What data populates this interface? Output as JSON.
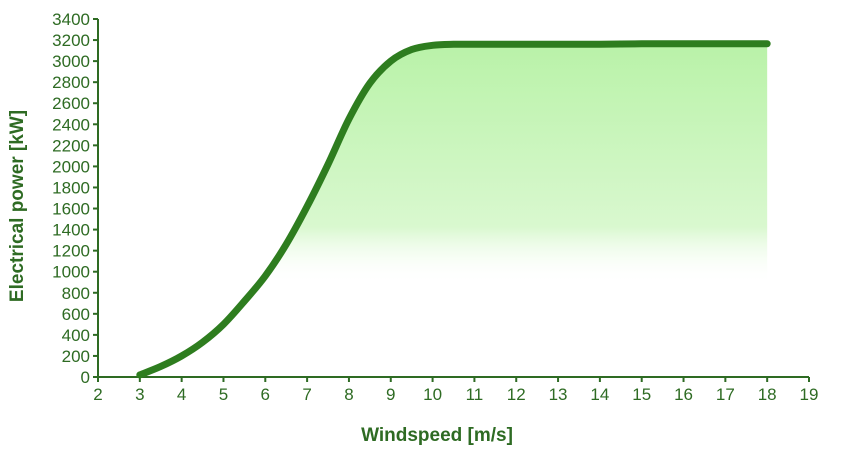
{
  "chart_data": {
    "type": "area",
    "title": "",
    "xlabel": "Windspeed [m/s]",
    "ylabel": "Electrical power [kW]",
    "xlim": [
      2,
      19
    ],
    "ylim": [
      0,
      3400
    ],
    "x_ticks": [
      2,
      3,
      4,
      5,
      6,
      7,
      8,
      9,
      10,
      11,
      12,
      13,
      14,
      15,
      16,
      17,
      18,
      19
    ],
    "y_ticks": [
      0,
      200,
      400,
      600,
      800,
      1000,
      1200,
      1400,
      1600,
      1800,
      2000,
      2200,
      2400,
      2600,
      2800,
      3000,
      3200,
      3400
    ],
    "grid": false,
    "series": [
      {
        "x": [
          3,
          3.5,
          4,
          4.5,
          5,
          5.5,
          6,
          6.5,
          7,
          7.5,
          8,
          8.5,
          9,
          9.5,
          10,
          10.5,
          11,
          12,
          13,
          14,
          15,
          16,
          17,
          18
        ],
        "y": [
          20,
          100,
          200,
          330,
          500,
          720,
          960,
          1260,
          1620,
          2020,
          2450,
          2790,
          3000,
          3110,
          3150,
          3160,
          3160,
          3160,
          3160,
          3160,
          3165,
          3165,
          3165,
          3165
        ],
        "color": "#2e7d1f",
        "fill_top": "#b9f2a8",
        "fill_bottom": "#ffffff"
      }
    ]
  }
}
